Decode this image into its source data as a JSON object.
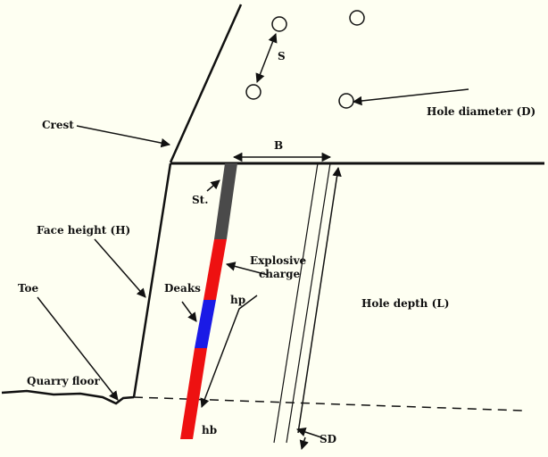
{
  "colors": {
    "background": "#fefff2",
    "stemming": "#4a4a4a",
    "explosive": "#ee1111",
    "deck": "#1a1ae6",
    "line": "#111111"
  },
  "labels": {
    "spacing": "S",
    "hole_diameter": "Hole diameter (D)",
    "crest": "Crest",
    "burden": "B",
    "stemming": "St.",
    "face_height": "Face height (H)",
    "explosive_charge_line1": "Explosive",
    "explosive_charge_line2": "charge",
    "toe": "Toe",
    "decks": "Deaks",
    "hp": "hp",
    "hole_depth": "Hole depth (L)",
    "quarry_floor": "Quarry floor",
    "hb": "hb",
    "subdrill": "SD"
  }
}
